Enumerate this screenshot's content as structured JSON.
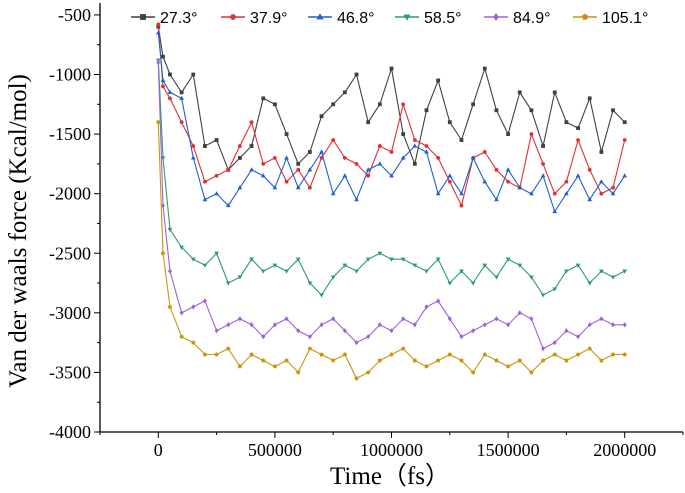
{
  "chart_data": {
    "type": "line",
    "title": "",
    "xlabel": "Time（fs）",
    "ylabel": "Van der waals force (Kcal/mol)",
    "xlim": [
      -250000,
      2250000
    ],
    "ylim": [
      -4000,
      -400
    ],
    "x_ticks": [
      0,
      500000,
      1000000,
      1500000,
      2000000
    ],
    "x_tick_labels": [
      "0",
      "500000",
      "1000000",
      "1500000",
      "2000000"
    ],
    "y_ticks": [
      -500,
      -1000,
      -1500,
      -2000,
      -2500,
      -3000,
      -3500,
      -4000
    ],
    "y_tick_labels": [
      "-500",
      "-1000",
      "-1500",
      "-2000",
      "-2500",
      "-3000",
      "-3500",
      "-4000"
    ],
    "legend_position": "top",
    "grid": false,
    "x": [
      0,
      20000,
      50000,
      100000,
      150000,
      200000,
      250000,
      300000,
      350000,
      400000,
      450000,
      500000,
      550000,
      600000,
      650000,
      700000,
      750000,
      800000,
      850000,
      900000,
      950000,
      1000000,
      1050000,
      1100000,
      1150000,
      1200000,
      1250000,
      1300000,
      1350000,
      1400000,
      1450000,
      1500000,
      1550000,
      1600000,
      1650000,
      1700000,
      1750000,
      1800000,
      1850000,
      1900000,
      1950000,
      2000000
    ],
    "series": [
      {
        "name": "27.3°",
        "color": "#404040",
        "marker": "square",
        "values": [
          -600,
          -850,
          -1000,
          -1150,
          -1000,
          -1600,
          -1550,
          -1800,
          -1700,
          -1600,
          -1200,
          -1250,
          -1500,
          -1750,
          -1650,
          -1350,
          -1250,
          -1150,
          -1000,
          -1400,
          -1250,
          -950,
          -1500,
          -1750,
          -1300,
          -1050,
          -1400,
          -1550,
          -1250,
          -950,
          -1300,
          -1500,
          -1150,
          -1300,
          -1600,
          -1150,
          -1400,
          -1450,
          -1200,
          -1650,
          -1300,
          -1400
        ]
      },
      {
        "name": "37.9°",
        "color": "#e03030",
        "marker": "circle",
        "values": [
          -580,
          -1100,
          -1200,
          -1400,
          -1600,
          -1900,
          -1850,
          -1800,
          -1600,
          -1400,
          -1750,
          -1700,
          -1900,
          -1800,
          -1950,
          -1700,
          -1550,
          -1700,
          -1750,
          -1850,
          -1600,
          -1650,
          -1250,
          -1550,
          -1600,
          -1700,
          -1900,
          -2100,
          -1700,
          -1650,
          -1800,
          -1900,
          -1950,
          -1500,
          -1750,
          -2000,
          -1900,
          -1550,
          -1800,
          -2000,
          -1950,
          -1550
        ]
      },
      {
        "name": "46.8°",
        "color": "#1f5fd0",
        "marker": "triangle",
        "values": [
          -650,
          -1050,
          -1150,
          -1200,
          -1700,
          -2050,
          -2000,
          -2100,
          -1950,
          -1800,
          -1850,
          -1950,
          -1700,
          -1950,
          -1800,
          -1650,
          -2000,
          -1850,
          -2050,
          -1800,
          -1750,
          -1850,
          -1700,
          -1600,
          -1650,
          -2000,
          -1850,
          -2000,
          -1700,
          -1900,
          -2050,
          -1800,
          -1950,
          -2000,
          -1850,
          -2150,
          -2000,
          -1850,
          -2050,
          -1900,
          -2000,
          -1850
        ]
      },
      {
        "name": "58.5°",
        "color": "#2a9d6a",
        "marker": "triangle-down",
        "values": [
          -880,
          -1700,
          -2300,
          -2450,
          -2550,
          -2600,
          -2500,
          -2750,
          -2700,
          -2550,
          -2650,
          -2600,
          -2650,
          -2550,
          -2750,
          -2850,
          -2700,
          -2600,
          -2650,
          -2550,
          -2500,
          -2550,
          -2550,
          -2600,
          -2650,
          -2550,
          -2750,
          -2650,
          -2750,
          -2600,
          -2700,
          -2550,
          -2600,
          -2700,
          -2850,
          -2800,
          -2650,
          -2600,
          -2750,
          -2650,
          -2700,
          -2650
        ]
      },
      {
        "name": "84.9°",
        "color": "#a060d8",
        "marker": "diamond",
        "values": [
          -900,
          -2100,
          -2650,
          -3000,
          -2950,
          -2900,
          -3150,
          -3100,
          -3050,
          -3100,
          -3200,
          -3100,
          -3050,
          -3150,
          -3200,
          -3100,
          -3050,
          -3150,
          -3250,
          -3200,
          -3100,
          -3150,
          -3050,
          -3100,
          -2950,
          -2900,
          -3050,
          -3200,
          -3150,
          -3100,
          -3050,
          -3100,
          -3000,
          -3050,
          -3300,
          -3250,
          -3150,
          -3200,
          -3100,
          -3050,
          -3100,
          -3100
        ]
      },
      {
        "name": "105.1°",
        "color": "#c9960f",
        "marker": "pentagon",
        "values": [
          -1400,
          -2500,
          -2950,
          -3200,
          -3250,
          -3350,
          -3350,
          -3300,
          -3450,
          -3350,
          -3400,
          -3450,
          -3400,
          -3500,
          -3300,
          -3350,
          -3400,
          -3350,
          -3550,
          -3500,
          -3400,
          -3350,
          -3300,
          -3400,
          -3450,
          -3400,
          -3350,
          -3400,
          -3500,
          -3350,
          -3400,
          -3450,
          -3400,
          -3500,
          -3400,
          -3350,
          -3400,
          -3350,
          -3300,
          -3400,
          -3350,
          -3350
        ]
      }
    ]
  }
}
